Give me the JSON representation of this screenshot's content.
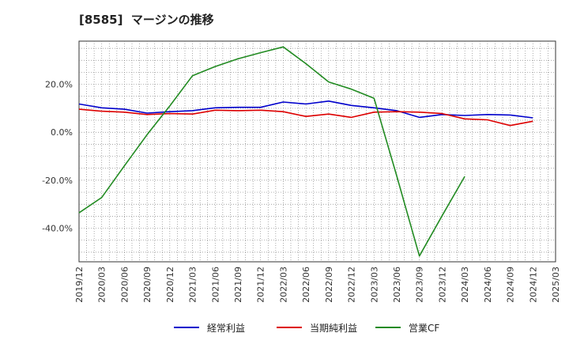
{
  "chart_data": {
    "type": "line",
    "title": "[8585]  マージンの推移",
    "categories": [
      "2019/12",
      "2020/03",
      "2020/06",
      "2020/09",
      "2020/12",
      "2021/03",
      "2021/06",
      "2021/09",
      "2021/12",
      "2022/03",
      "2022/06",
      "2022/09",
      "2022/12",
      "2023/03",
      "2023/06",
      "2023/09",
      "2023/12",
      "2024/03",
      "2024/06",
      "2024/09",
      "2024/12",
      "2025/03"
    ],
    "ylim": [
      -54,
      38
    ],
    "yticks": [
      20,
      0,
      -20,
      -40
    ],
    "ytick_labels": [
      "20.0%",
      "0.0%",
      "-20.0%",
      "-40.0%"
    ],
    "grid": true,
    "legend_position": "bottom",
    "series": [
      {
        "name": "経常利益",
        "color": "#0000cc",
        "values": [
          11.8,
          10.2,
          9.6,
          8.0,
          8.6,
          9.0,
          10.2,
          10.4,
          10.4,
          12.6,
          11.8,
          13.0,
          11.2,
          10.2,
          9.0,
          6.2,
          7.4,
          7.0,
          7.4,
          7.2,
          6.0,
          null
        ]
      },
      {
        "name": "当期純利益",
        "color": "#dd0000",
        "values": [
          9.6,
          8.8,
          8.4,
          7.4,
          7.8,
          7.6,
          9.2,
          9.0,
          9.2,
          8.6,
          6.6,
          7.6,
          6.2,
          8.4,
          8.6,
          8.4,
          7.8,
          5.6,
          5.2,
          2.8,
          4.6,
          null
        ]
      },
      {
        "name": "営業CF",
        "color": "#228b22",
        "values": [
          -33.6,
          -27.2,
          -14.0,
          -1.0,
          11.0,
          23.6,
          27.4,
          30.6,
          33.2,
          35.6,
          28.6,
          21.0,
          18.0,
          14.2,
          -18.2,
          -51.6,
          -34.8,
          -18.4,
          null,
          null,
          null,
          null
        ]
      }
    ]
  }
}
